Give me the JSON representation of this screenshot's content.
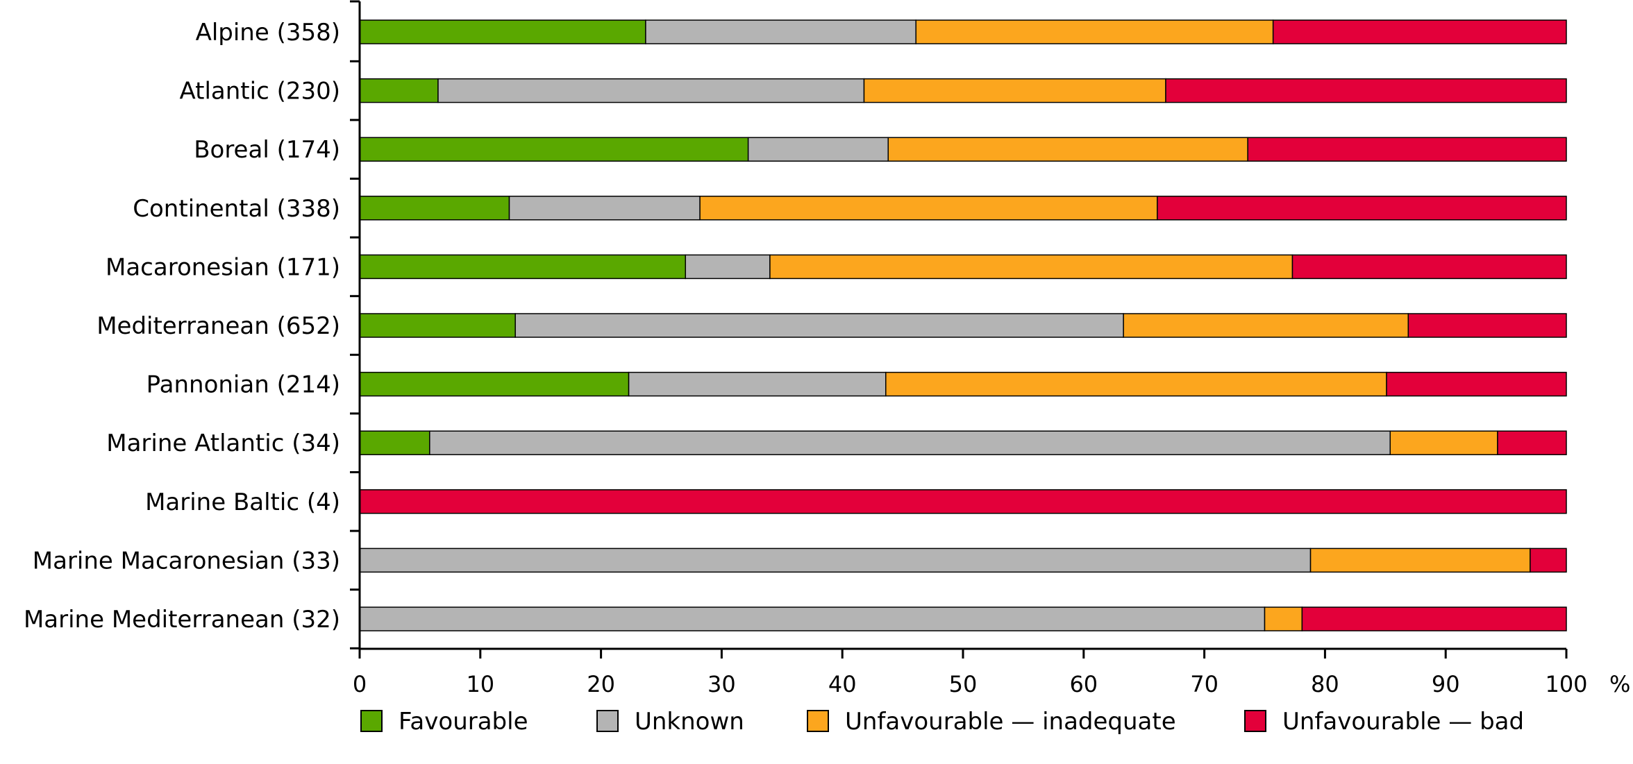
{
  "chart_data": {
    "type": "bar",
    "orientation": "horizontal",
    "stacked": true,
    "categories": [
      "Alpine (358)",
      "Atlantic (230)",
      "Boreal (174)",
      "Continental (338)",
      "Macaronesian (171)",
      "Mediterranean (652)",
      "Pannonian (214)",
      "Marine Atlantic (34)",
      "Marine Baltic (4)",
      "Marine Macaronesian (33)",
      "Marine Mediterranean (32)"
    ],
    "series": [
      {
        "name": "Favourable",
        "color": "#5aa800",
        "values": [
          23.7,
          6.5,
          32.2,
          12.4,
          27.0,
          12.9,
          22.3,
          5.8,
          0,
          0,
          0
        ]
      },
      {
        "name": "Unknown",
        "color": "#b4b4b4",
        "values": [
          22.4,
          35.3,
          11.6,
          15.8,
          7.0,
          50.4,
          21.3,
          79.6,
          0,
          78.8,
          75.0
        ]
      },
      {
        "name": "Unfavourable — inadequate",
        "color": "#fca61e",
        "values": [
          29.6,
          25.0,
          29.8,
          37.9,
          43.3,
          23.6,
          41.5,
          8.9,
          0,
          18.2,
          3.1
        ]
      },
      {
        "name": "Unfavourable — bad",
        "color": "#e3003a",
        "values": [
          24.3,
          33.2,
          26.4,
          33.9,
          22.7,
          13.1,
          14.9,
          5.7,
          100,
          3.0,
          21.9
        ]
      }
    ],
    "xlim": [
      0,
      100
    ],
    "xticks": [
      "0",
      "10",
      "20",
      "30",
      "40",
      "50",
      "60",
      "70",
      "80",
      "90",
      "100"
    ],
    "xunit": "%",
    "legend_position": "bottom",
    "grid": false
  }
}
